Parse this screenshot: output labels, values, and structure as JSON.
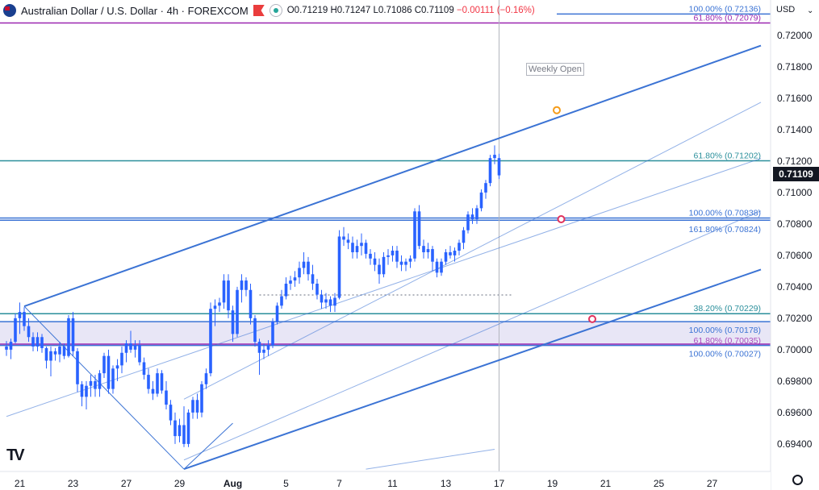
{
  "header": {
    "title": "Australian Dollar / U.S. Dollar · 4h · FOREXCOM",
    "open": "O0.71219",
    "high": "H0.71247",
    "low": "L0.71086",
    "close": "C0.71109",
    "change": "−0.00111 (−0.16%)"
  },
  "currency_label": "USD",
  "current_price_label": "0.71109",
  "weekly_open_label": "Weekly Open",
  "colors": {
    "candle": "#2962ff",
    "channel": "#3b73d4",
    "teal_level": "#2a8f9b",
    "purple_level": "#9c27b0",
    "zone_fill": "#d6d1ee",
    "grey_dotted": "#b2b5be",
    "orange_marker": "#f59c1a",
    "red_marker": "#e0325d"
  },
  "chart_data": {
    "type": "candlestick",
    "ylim": [
      0.69225,
      0.72225
    ],
    "y_ticks": [
      "0.72000",
      "0.71800",
      "0.71600",
      "0.71400",
      "0.71200",
      "0.71000",
      "0.70800",
      "0.70600",
      "0.70400",
      "0.70200",
      "0.70000",
      "0.69800",
      "0.69600",
      "0.69400"
    ],
    "y_tick_values": [
      0.72,
      0.718,
      0.716,
      0.714,
      0.712,
      0.71,
      0.708,
      0.706,
      0.704,
      0.702,
      0.7,
      0.698,
      0.696,
      0.694
    ],
    "x_ticks": [
      "21",
      "23",
      "27",
      "29",
      "Aug",
      "5",
      "7",
      "11",
      "13",
      "17",
      "19",
      "21",
      "25",
      "27"
    ],
    "x_tick_bars": [
      3,
      15,
      27,
      39,
      51,
      63,
      75,
      87,
      99,
      111,
      123,
      135,
      147,
      159
    ],
    "bars_total": 170,
    "levels": [
      {
        "label": "100.00% (0.72136)",
        "value": 0.72136,
        "color": "#3b73d4",
        "line": true,
        "span": "right"
      },
      {
        "label": "61.80% (0.72079)",
        "value": 0.72079,
        "color": "#9c27b0",
        "line": true,
        "span": "full"
      },
      {
        "label": "61.80% (0.71202)",
        "value": 0.71202,
        "color": "#2a8f9b",
        "line": true,
        "span": "full"
      },
      {
        "label": "100.00% (0.70838)",
        "value": 0.70838,
        "color": "#3b73d4",
        "line": true,
        "span": "full"
      },
      {
        "label": "161.80% (0.70824)",
        "value": 0.70824,
        "color": "#3b73d4",
        "line": true,
        "span": "full"
      },
      {
        "label": "38.20% (0.70229)",
        "value": 0.70229,
        "color": "#2a8f9b",
        "line": true,
        "span": "full"
      },
      {
        "label": "100.00% (0.70178)",
        "value": 0.70178,
        "color": "#3b73d4",
        "line": true,
        "span": "full"
      },
      {
        "label": "61.80% (0.70035)",
        "value": 0.70035,
        "color": "#9c27b0",
        "line": true,
        "span": "full"
      },
      {
        "label": "100.00% (0.70027)",
        "value": 0.70027,
        "color": "#3b73d4",
        "line": true,
        "span": "full"
      }
    ],
    "zone": {
      "top": 0.70178,
      "bottom": 0.70027
    },
    "dotted_level": {
      "value": 0.70348,
      "from_bar": 57,
      "to_bar": 114
    },
    "weekly_open_bar": 111,
    "channel": {
      "upper": {
        "b1": 4,
        "v1": 0.70276,
        "b2": 170,
        "v2": 0.71935,
        "width": 2
      },
      "upper_median": {
        "b1": 40,
        "v1": 0.69685,
        "b2": 170,
        "v2": 0.71574,
        "width": 1
      },
      "middle": {
        "b1": 0,
        "v1": 0.69575,
        "b2": 170,
        "v2": 0.71217,
        "width": 1
      },
      "lower_median": {
        "b1": 40,
        "v1": 0.69298,
        "b2": 170,
        "v2": 0.70883,
        "width": 1
      },
      "lower": {
        "b1": 40,
        "v1": 0.6924,
        "b2": 170,
        "v2": 0.7051,
        "width": 2
      },
      "stub": {
        "b1": 81,
        "v1": 0.6924,
        "b2": 110,
        "v2": 0.69366,
        "width": 1
      }
    },
    "fan_lines": [
      {
        "b1": 4,
        "v1": 0.70276,
        "b2": 40,
        "v2": 0.6924
      },
      {
        "b1": 40,
        "v1": 0.6924,
        "b2": 51,
        "v2": 0.69532
      }
    ],
    "markers": [
      {
        "bar": 124,
        "value": 0.71524,
        "color": "#f59c1a"
      },
      {
        "bar": 125,
        "value": 0.7083,
        "color": "#e0325d"
      },
      {
        "bar": 132,
        "value": 0.70195,
        "color": "#e0325d"
      }
    ],
    "candles": [
      [
        0.7002,
        0.70055,
        0.6996,
        0.7
      ],
      [
        0.7,
        0.7007,
        0.6994,
        0.7005
      ],
      [
        0.7005,
        0.7023,
        0.7004,
        0.702
      ],
      [
        0.702,
        0.703,
        0.701,
        0.7024
      ],
      [
        0.7024,
        0.7027,
        0.7012,
        0.7015
      ],
      [
        0.7015,
        0.702,
        0.7005,
        0.7008
      ],
      [
        0.7008,
        0.7011,
        0.6999,
        0.7002
      ],
      [
        0.7002,
        0.7011,
        0.6999,
        0.7008
      ],
      [
        0.7008,
        0.701,
        0.6998,
        0.7001
      ],
      [
        0.7001,
        0.7002,
        0.6988,
        0.6993
      ],
      [
        0.6993,
        0.7002,
        0.6983,
        0.6999
      ],
      [
        0.6999,
        0.7001,
        0.6993,
        0.6997
      ],
      [
        0.6997,
        0.7005,
        0.6992,
        0.7002
      ],
      [
        0.7002,
        0.7004,
        0.6994,
        0.6996
      ],
      [
        0.6996,
        0.7022,
        0.6995,
        0.702
      ],
      [
        0.702,
        0.7024,
        0.6996,
        0.6999
      ],
      [
        0.6999,
        0.7001,
        0.6973,
        0.6978
      ],
      [
        0.6978,
        0.698,
        0.6964,
        0.697
      ],
      [
        0.697,
        0.698,
        0.6962,
        0.6977
      ],
      [
        0.6977,
        0.6984,
        0.697,
        0.698
      ],
      [
        0.698,
        0.6984,
        0.697,
        0.6975
      ],
      [
        0.6975,
        0.6987,
        0.697,
        0.6985
      ],
      [
        0.6985,
        0.6998,
        0.6982,
        0.6996
      ],
      [
        0.6996,
        0.7,
        0.6972,
        0.6975
      ],
      [
        0.6975,
        0.699,
        0.6972,
        0.6988
      ],
      [
        0.6988,
        0.6994,
        0.698,
        0.699
      ],
      [
        0.699,
        0.7002,
        0.6985,
        0.6998
      ],
      [
        0.6998,
        0.7006,
        0.6992,
        0.7004
      ],
      [
        0.7004,
        0.7012,
        0.6998,
        0.7
      ],
      [
        0.7,
        0.7006,
        0.6995,
        0.7003
      ],
      [
        0.7003,
        0.7006,
        0.699,
        0.6992
      ],
      [
        0.6992,
        0.6995,
        0.6981,
        0.6984
      ],
      [
        0.6984,
        0.6988,
        0.6972,
        0.6975
      ],
      [
        0.6975,
        0.698,
        0.6968,
        0.6972
      ],
      [
        0.6972,
        0.6988,
        0.697,
        0.6985
      ],
      [
        0.6985,
        0.6987,
        0.6972,
        0.6974
      ],
      [
        0.6974,
        0.698,
        0.6962,
        0.6965
      ],
      [
        0.6965,
        0.6968,
        0.6952,
        0.6955
      ],
      [
        0.6955,
        0.696,
        0.694,
        0.6945
      ],
      [
        0.6945,
        0.6956,
        0.6941,
        0.6952
      ],
      [
        0.6952,
        0.6964,
        0.6938,
        0.694
      ],
      [
        0.694,
        0.6962,
        0.6938,
        0.696
      ],
      [
        0.696,
        0.697,
        0.6956,
        0.6968
      ],
      [
        0.6968,
        0.6972,
        0.6956,
        0.696
      ],
      [
        0.696,
        0.698,
        0.6957,
        0.6978
      ],
      [
        0.6978,
        0.6988,
        0.6975,
        0.6985
      ],
      [
        0.6985,
        0.703,
        0.6983,
        0.7026
      ],
      [
        0.7026,
        0.7032,
        0.7015,
        0.7028
      ],
      [
        0.7028,
        0.7033,
        0.7024,
        0.703
      ],
      [
        0.703,
        0.7048,
        0.7026,
        0.7044
      ],
      [
        0.7044,
        0.7048,
        0.702,
        0.7025
      ],
      [
        0.7025,
        0.7028,
        0.7005,
        0.701
      ],
      [
        0.701,
        0.704,
        0.7008,
        0.7038
      ],
      [
        0.7038,
        0.7048,
        0.703,
        0.7044
      ],
      [
        0.7044,
        0.7046,
        0.7034,
        0.7038
      ],
      [
        0.7038,
        0.7042,
        0.7016,
        0.702
      ],
      [
        0.702,
        0.7022,
        0.7002,
        0.7005
      ],
      [
        0.7005,
        0.7007,
        0.6984,
        0.6998
      ],
      [
        0.6998,
        0.7004,
        0.6994,
        0.7
      ],
      [
        0.7,
        0.7006,
        0.6996,
        0.7003
      ],
      [
        0.7003,
        0.702,
        0.7001,
        0.7018
      ],
      [
        0.7018,
        0.703,
        0.7016,
        0.7028
      ],
      [
        0.7028,
        0.7038,
        0.7026,
        0.7034
      ],
      [
        0.7034,
        0.7046,
        0.7032,
        0.7042
      ],
      [
        0.7042,
        0.7047,
        0.7038,
        0.7044
      ],
      [
        0.7044,
        0.705,
        0.704,
        0.7046
      ],
      [
        0.7046,
        0.7056,
        0.7042,
        0.7052
      ],
      [
        0.7052,
        0.7062,
        0.7048,
        0.7056
      ],
      [
        0.7056,
        0.7059,
        0.7044,
        0.7048
      ],
      [
        0.7048,
        0.7054,
        0.7038,
        0.7042
      ],
      [
        0.7042,
        0.7045,
        0.7032,
        0.7035
      ],
      [
        0.7035,
        0.7038,
        0.7026,
        0.703
      ],
      [
        0.703,
        0.7036,
        0.7026,
        0.7032
      ],
      [
        0.7032,
        0.7034,
        0.7024,
        0.7028
      ],
      [
        0.7028,
        0.7036,
        0.7024,
        0.7033
      ],
      [
        0.7033,
        0.7076,
        0.7032,
        0.7072
      ],
      [
        0.7072,
        0.7078,
        0.7066,
        0.707
      ],
      [
        0.707,
        0.7074,
        0.7064,
        0.7068
      ],
      [
        0.7068,
        0.7072,
        0.7058,
        0.7062
      ],
      [
        0.7062,
        0.707,
        0.7058,
        0.7066
      ],
      [
        0.7066,
        0.7074,
        0.706,
        0.7068
      ],
      [
        0.7068,
        0.707,
        0.7058,
        0.7061
      ],
      [
        0.7061,
        0.7064,
        0.7054,
        0.7058
      ],
      [
        0.7058,
        0.7062,
        0.705,
        0.7054
      ],
      [
        0.7054,
        0.7058,
        0.7042,
        0.7048
      ],
      [
        0.7048,
        0.7062,
        0.7046,
        0.7059
      ],
      [
        0.7059,
        0.7064,
        0.7054,
        0.706
      ],
      [
        0.706,
        0.7066,
        0.7056,
        0.7063
      ],
      [
        0.7063,
        0.7066,
        0.7052,
        0.7056
      ],
      [
        0.7056,
        0.706,
        0.705,
        0.7054
      ],
      [
        0.7054,
        0.7058,
        0.705,
        0.7056
      ],
      [
        0.7056,
        0.706,
        0.7052,
        0.7058
      ],
      [
        0.7058,
        0.709,
        0.7056,
        0.7088
      ],
      [
        0.7088,
        0.7092,
        0.7064,
        0.7066
      ],
      [
        0.7066,
        0.707,
        0.7058,
        0.7062
      ],
      [
        0.7062,
        0.7068,
        0.7058,
        0.7064
      ],
      [
        0.7064,
        0.7066,
        0.705,
        0.7056
      ],
      [
        0.7056,
        0.7058,
        0.7046,
        0.7049
      ],
      [
        0.7049,
        0.7058,
        0.7047,
        0.7056
      ],
      [
        0.7056,
        0.7064,
        0.7054,
        0.7062
      ],
      [
        0.7062,
        0.7066,
        0.7058,
        0.706
      ],
      [
        0.706,
        0.7065,
        0.7056,
        0.7063
      ],
      [
        0.7063,
        0.707,
        0.706,
        0.7068
      ],
      [
        0.7068,
        0.7078,
        0.7064,
        0.7076
      ],
      [
        0.7076,
        0.7088,
        0.7074,
        0.7086
      ],
      [
        0.7086,
        0.709,
        0.708,
        0.7083
      ],
      [
        0.7083,
        0.7092,
        0.708,
        0.709
      ],
      [
        0.709,
        0.7102,
        0.7088,
        0.71
      ],
      [
        0.71,
        0.7108,
        0.7096,
        0.7106
      ],
      [
        0.7106,
        0.7124,
        0.7104,
        0.71219
      ],
      [
        0.71219,
        0.713,
        0.7118,
        0.7124
      ],
      [
        0.71219,
        0.71247,
        0.71086,
        0.71109
      ]
    ]
  }
}
